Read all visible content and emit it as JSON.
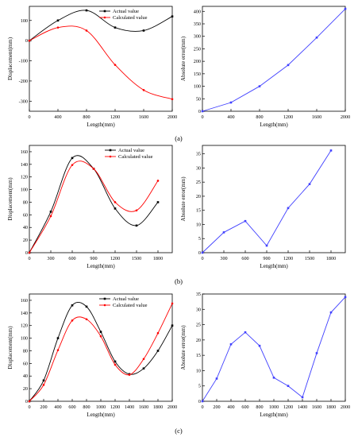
{
  "figure": {
    "panel_labels": [
      "(a)",
      "(b)",
      "(c)"
    ]
  },
  "chart_data": [
    {
      "id": "a-left",
      "type": "line",
      "panel": "(a)",
      "xlabel": "Length(mm)",
      "ylabel": "Displacement(mm)",
      "xlim": [
        0,
        2000
      ],
      "ylim": [
        -350,
        170
      ],
      "xticks": [
        0,
        400,
        800,
        1200,
        1600,
        2000
      ],
      "yticks": [
        -300,
        -200,
        -100,
        0,
        100
      ],
      "legend": "top-center",
      "series": [
        {
          "name": "Actual value",
          "color": "#000000",
          "marker": "square",
          "x": [
            0,
            400,
            800,
            1200,
            1600,
            2000
          ],
          "y": [
            0,
            100,
            150,
            65,
            50,
            120
          ]
        },
        {
          "name": "Calculated value",
          "color": "#ff0000",
          "marker": "circle",
          "x": [
            0,
            400,
            800,
            1200,
            1600,
            2000
          ],
          "y": [
            0,
            65,
            50,
            -120,
            -245,
            -290
          ]
        }
      ]
    },
    {
      "id": "a-right",
      "type": "line",
      "panel": "(a)",
      "xlabel": "Length(mm)",
      "ylabel": "Absolute error(mm)",
      "xlim": [
        0,
        2000
      ],
      "ylim": [
        0,
        420
      ],
      "xticks": [
        0,
        400,
        800,
        1200,
        1600,
        2000
      ],
      "yticks": [
        0,
        50,
        100,
        150,
        200,
        250,
        300,
        350,
        400
      ],
      "series": [
        {
          "name": "",
          "color": "#4040ff",
          "marker": "square",
          "x": [
            0,
            400,
            800,
            1200,
            1600,
            2000
          ],
          "y": [
            0,
            35,
            100,
            185,
            295,
            410
          ]
        }
      ]
    },
    {
      "id": "b-left",
      "type": "line",
      "panel": "(b)",
      "xlabel": "Length(mm)",
      "ylabel": "Displacement(mm)",
      "xlim": [
        0,
        2000
      ],
      "ylim": [
        0,
        170
      ],
      "xticks": [
        0,
        300,
        600,
        900,
        1200,
        1500,
        1800
      ],
      "yticks": [
        0,
        20,
        40,
        60,
        80,
        100,
        120,
        140,
        160
      ],
      "legend": "top-right",
      "series": [
        {
          "name": "Actual value",
          "color": "#000000",
          "marker": "square",
          "x": [
            0,
            300,
            600,
            900,
            1200,
            1500,
            1800
          ],
          "y": [
            0,
            65,
            150,
            133,
            70,
            43,
            80
          ]
        },
        {
          "name": "Calculated value",
          "color": "#ff0000",
          "marker": "circle",
          "x": [
            0,
            300,
            600,
            900,
            1200,
            1500,
            1800
          ],
          "y": [
            0,
            58,
            139,
            133,
            80,
            67,
            114
          ]
        }
      ]
    },
    {
      "id": "b-right",
      "type": "line",
      "panel": "(b)",
      "xlabel": "Length(mm)",
      "ylabel": "Absolute error(mm)",
      "xlim": [
        0,
        2000
      ],
      "ylim": [
        0,
        38
      ],
      "xticks": [
        0,
        300,
        600,
        900,
        1200,
        1500,
        1800
      ],
      "yticks": [
        0,
        5,
        10,
        15,
        20,
        25,
        30,
        35
      ],
      "series": [
        {
          "name": "",
          "color": "#4040ff",
          "marker": "square",
          "x": [
            0,
            300,
            600,
            900,
            1200,
            1500,
            1800
          ],
          "y": [
            0,
            7.2,
            11.2,
            2.5,
            15.8,
            24.3,
            36.2
          ]
        }
      ]
    },
    {
      "id": "c-left",
      "type": "line",
      "panel": "(c)",
      "xlabel": "Length(mm)",
      "ylabel": "Displacement(mm)",
      "xlim": [
        0,
        2000
      ],
      "ylim": [
        0,
        170
      ],
      "xticks": [
        0,
        200,
        400,
        600,
        800,
        1000,
        1200,
        1400,
        1600,
        1800,
        2000
      ],
      "yticks": [
        0,
        20,
        40,
        60,
        80,
        100,
        120,
        140,
        160
      ],
      "legend": "top-center",
      "series": [
        {
          "name": "Actual value",
          "color": "#000000",
          "marker": "square",
          "x": [
            0,
            200,
            400,
            600,
            800,
            1000,
            1200,
            1400,
            1600,
            1800,
            2000
          ],
          "y": [
            0,
            33,
            100,
            152,
            150,
            110,
            63,
            43,
            52,
            80,
            120
          ]
        },
        {
          "name": "Calculated value",
          "color": "#ff0000",
          "marker": "circle",
          "x": [
            0,
            200,
            400,
            600,
            800,
            1000,
            1200,
            1400,
            1600,
            1800,
            2000
          ],
          "y": [
            0,
            26,
            81,
            128,
            130,
            103,
            58,
            42,
            67,
            108,
            155
          ]
        }
      ]
    },
    {
      "id": "c-right",
      "type": "line",
      "panel": "(c)",
      "xlabel": "Length(mm)",
      "ylabel": "Absolute error(mm)",
      "xlim": [
        0,
        2000
      ],
      "ylim": [
        0,
        35
      ],
      "xticks": [
        0,
        200,
        400,
        600,
        800,
        1000,
        1200,
        1400,
        1600,
        1800,
        2000
      ],
      "yticks": [
        0,
        5,
        10,
        15,
        20,
        25,
        30,
        35
      ],
      "series": [
        {
          "name": "",
          "color": "#4040ff",
          "marker": "square",
          "x": [
            0,
            200,
            400,
            600,
            800,
            1000,
            1200,
            1400,
            1600,
            1800,
            2000
          ],
          "y": [
            0,
            7.4,
            18.6,
            22.5,
            18.1,
            7.7,
            5.0,
            1.3,
            15.7,
            29.0,
            34.0
          ]
        }
      ]
    }
  ]
}
